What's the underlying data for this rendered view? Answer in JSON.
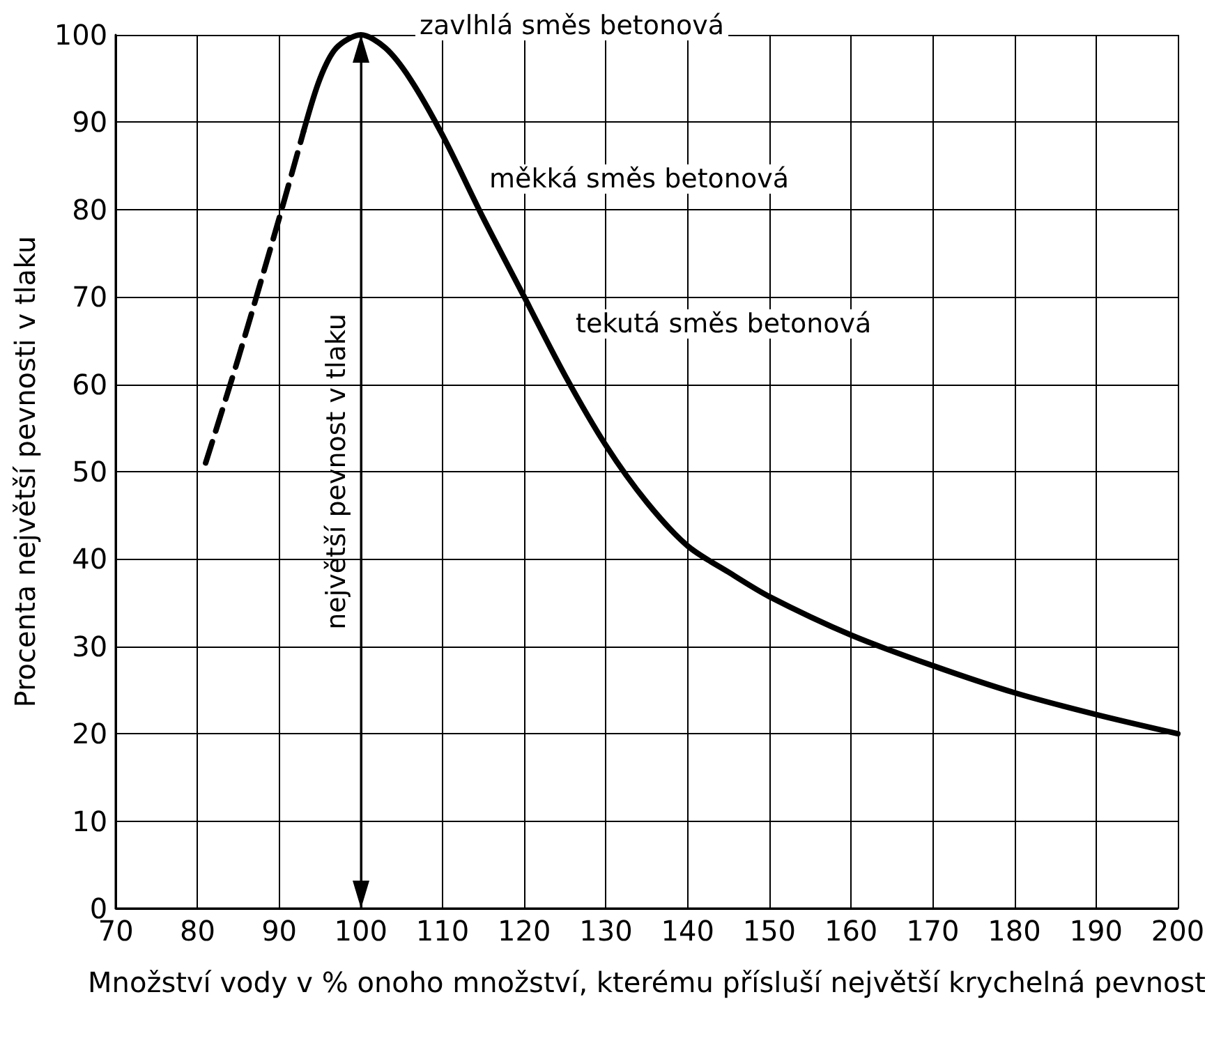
{
  "chart_data": {
    "type": "line",
    "xlabel": "Množství vody v % onoho množství, kterému přísluší největší krychelná pevnost",
    "ylabel": "Procenta největší pevnosti v tlaku",
    "xlim": [
      70,
      200
    ],
    "xticks": [
      70,
      80,
      90,
      100,
      110,
      120,
      130,
      140,
      150,
      160,
      170,
      180,
      190,
      200
    ],
    "ylim": [
      0,
      100
    ],
    "yticks": [
      0,
      10,
      20,
      30,
      40,
      50,
      60,
      70,
      80,
      90,
      100
    ],
    "grid": true,
    "marker": "none",
    "series": [
      {
        "color": "#000000",
        "line_style": "dashed",
        "x": [
          81,
          85,
          90,
          93
        ],
        "values": [
          51,
          63,
          79,
          89
        ]
      },
      {
        "color": "#000000",
        "line_style": "solid",
        "x": [
          93,
          95,
          97,
          100,
          103,
          106,
          110,
          115,
          120,
          125,
          130,
          135,
          140,
          145,
          150,
          160,
          170,
          180,
          190,
          200
        ],
        "values": [
          89,
          95,
          98.5,
          100,
          98.5,
          95,
          88.5,
          79,
          70,
          61,
          53,
          46.5,
          41.5,
          38.5,
          35.7,
          31.3,
          27.8,
          24.7,
          22.2,
          20
        ]
      }
    ],
    "ref_lines": [
      {
        "axis": "x",
        "value": 100,
        "label": "největší pevnost v tlaku"
      }
    ],
    "annotations": [
      "zavlhlá směs betonová",
      "měkká směs betonová",
      "tekutá směs betonová"
    ]
  }
}
